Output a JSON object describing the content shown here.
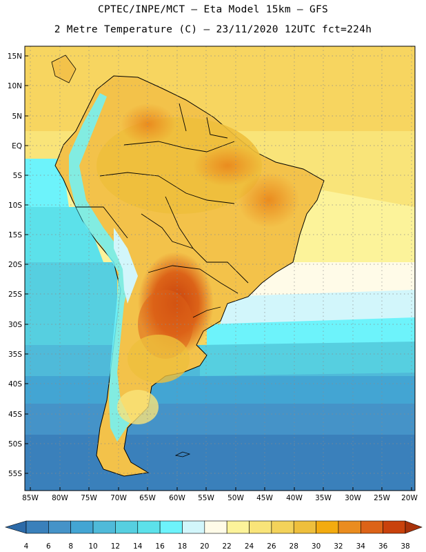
{
  "header": {
    "line1": "CPTEC/INPE/MCT –  Eta Model 15km – GFS",
    "line2": "2 Metre Temperature (C) – 23/11/2020 12UTC fct=224h"
  },
  "lat_labels": [
    "15N",
    "10N",
    "5N",
    "EQ",
    "5S",
    "10S",
    "15S",
    "20S",
    "25S",
    "30S",
    "35S",
    "40S",
    "45S",
    "50S",
    "55S"
  ],
  "lon_labels": [
    "85W",
    "80W",
    "75W",
    "70W",
    "65W",
    "60W",
    "55W",
    "50W",
    "45W",
    "40W",
    "35W",
    "30W",
    "25W",
    "20W"
  ],
  "colorbar": {
    "labels": [
      "4",
      "6",
      "8",
      "10",
      "12",
      "14",
      "16",
      "18",
      "20",
      "22",
      "24",
      "26",
      "28",
      "30",
      "32",
      "34",
      "36",
      "38"
    ],
    "colors": [
      "#2c6aa8",
      "#3a80bb",
      "#4593c8",
      "#43a5d3",
      "#4fbad9",
      "#56cfe0",
      "#5ce1ea",
      "#6df3fb",
      "#d2f6fb",
      "#fffbe8",
      "#fcf39a",
      "#f9e479",
      "#f3d25a",
      "#eebf3c",
      "#f3ab0f",
      "#ea8c1f",
      "#dc6318",
      "#c9420c",
      "#a8320a"
    ]
  }
}
